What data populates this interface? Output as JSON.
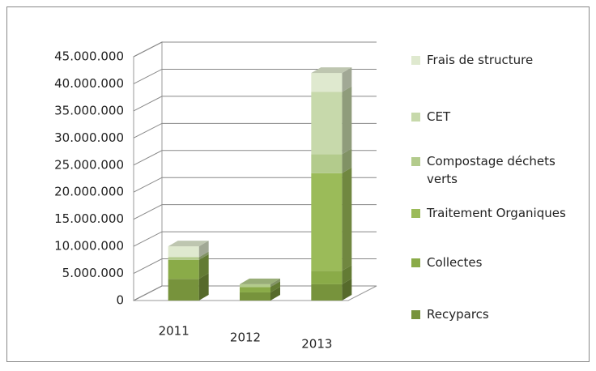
{
  "chart_data": {
    "type": "bar3d_stacked",
    "categories": [
      "2011",
      "2012",
      "2013"
    ],
    "series": [
      {
        "name": "Recyparcs",
        "color": "#77933c",
        "values": [
          4000000,
          1500000,
          3000000
        ]
      },
      {
        "name": "Collectes",
        "color": "#8aab48",
        "values": [
          3500000,
          1000000,
          2500000
        ]
      },
      {
        "name": "Traitement Organiques",
        "color": "#9bbb59",
        "values": [
          0,
          0,
          18000000
        ]
      },
      {
        "name": "Compostage déchets verts",
        "color": "#b3cb8c",
        "values": [
          500000,
          500000,
          3500000
        ]
      },
      {
        "name": "CET",
        "color": "#c7d9ab",
        "values": [
          0,
          0,
          11500000
        ]
      },
      {
        "name": "Frais de structure",
        "color": "#dfe9cf",
        "values": [
          2000000,
          0,
          3500000
        ]
      }
    ],
    "ylim": [
      0,
      45000000
    ],
    "yticks": [
      0,
      {
        "value": 5000000,
        "label": "5.000.000"
      },
      {
        "value": 10000000,
        "label": "10.000.000"
      },
      {
        "value": 15000000,
        "label": "15.000.000"
      },
      {
        "value": 20000000,
        "label": "20.000.000"
      },
      {
        "value": 25000000,
        "label": "25.000.000"
      },
      {
        "value": 30000000,
        "label": "30.000.000"
      },
      {
        "value": 35000000,
        "label": "35.000.000"
      },
      {
        "value": 40000000,
        "label": "40.000.000"
      },
      {
        "value": 45000000,
        "label": "45.000.000"
      }
    ],
    "grid": true,
    "legend": "right"
  }
}
